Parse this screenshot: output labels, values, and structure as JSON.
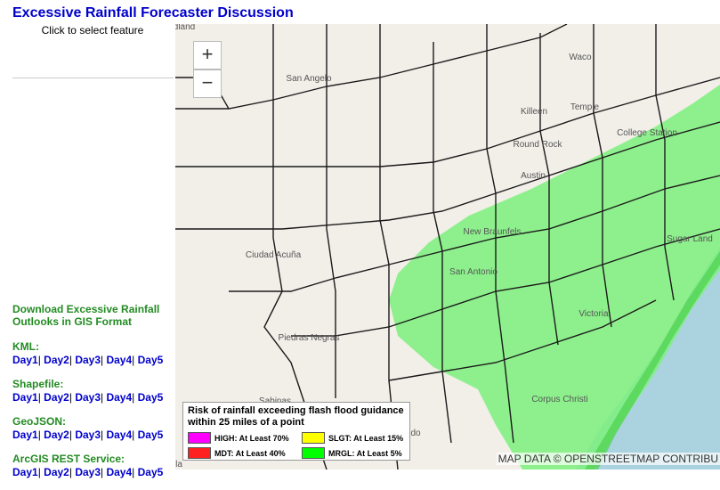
{
  "header": {
    "title": "Excessive Rainfall Forecaster Discussion",
    "subtitle": "Click to select feature"
  },
  "downloads": {
    "heading": "Download Excessive Rainfall Outlooks in GIS Format",
    "separator": "|",
    "sections": [
      {
        "label": "KML:",
        "links": [
          "Day1",
          "Day2",
          "Day3",
          "Day4",
          "Day5"
        ]
      },
      {
        "label": "Shapefile:",
        "links": [
          "Day1",
          "Day2",
          "Day3",
          "Day4",
          "Day5"
        ]
      },
      {
        "label": "GeoJSON:",
        "links": [
          "Day1",
          "Day2",
          "Day3",
          "Day4",
          "Day5"
        ]
      },
      {
        "label": "ArcGIS REST Service:",
        "links": [
          "Day1",
          "Day2",
          "Day3",
          "Day4",
          "Day5"
        ]
      }
    ]
  },
  "map": {
    "zoom_in": "+",
    "zoom_out": "−",
    "places": [
      "dland",
      "San Angelo",
      "Waco",
      "Killeen",
      "Temple",
      "Round Rock",
      "Austin",
      "College Station",
      "New Braunfels",
      "San Antonio",
      "Sugar Land",
      "Ciudad Acuña",
      "Piedras Negras",
      "Victoria",
      "Corpus Christi",
      "Sabinas",
      "do",
      "la"
    ],
    "legend": {
      "title": "Risk of rainfall exceeding flash flood guidance within 25 miles of a point",
      "items": [
        {
          "label": "HIGH: At Least 70%",
          "color": "#ff00ff"
        },
        {
          "label": "SLGT: At Least 15%",
          "color": "#ffff00"
        },
        {
          "label": "MDT: At Least 40%",
          "color": "#ff2020"
        },
        {
          "label": "MRGL: At Least 5%",
          "color": "#00ff00"
        }
      ]
    },
    "attribution": "MAP DATA © OPENSTREETMAP CONTRIBU"
  }
}
